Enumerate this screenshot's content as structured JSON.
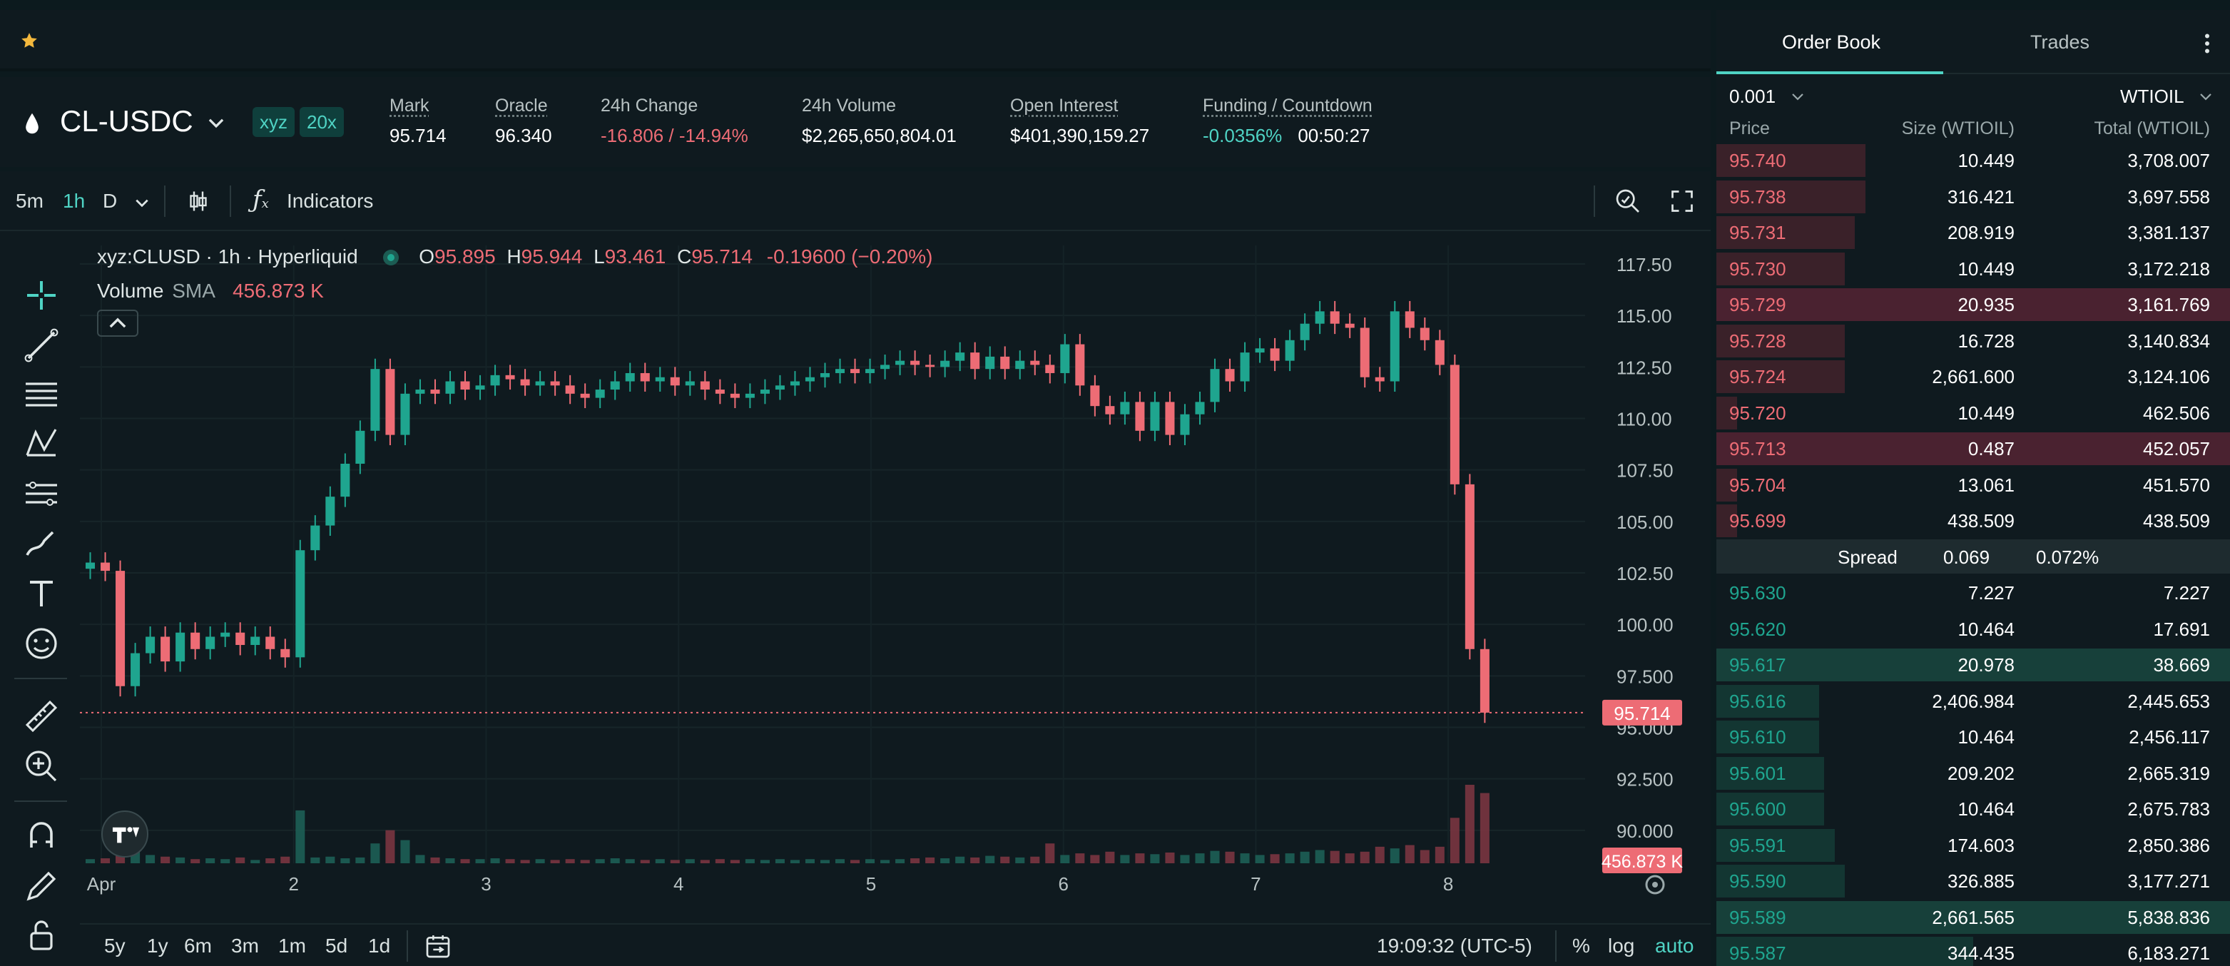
{
  "market": {
    "symbol": "CL-USDC",
    "tags": [
      "xyz",
      "20x"
    ],
    "stats": [
      {
        "label": "Mark",
        "value": "95.714",
        "tone": "white"
      },
      {
        "label": "Oracle",
        "value": "96.340",
        "tone": "white"
      },
      {
        "label": "24h Change",
        "value": "-16.806 / -14.94%",
        "tone": "red"
      },
      {
        "label": "24h Volume",
        "value": "$2,265,650,804.01",
        "tone": "white"
      },
      {
        "label": "Open Interest",
        "value": "$401,390,159.27",
        "tone": "white"
      },
      {
        "label": "Funding / Countdown",
        "value": "-0.0356%",
        "value2": "00:50:27",
        "tone": "teal"
      }
    ]
  },
  "toolbar": {
    "timeframes": [
      "5m",
      "1h",
      "D"
    ],
    "active_timeframe": "1h",
    "indicators_label": "Indicators"
  },
  "legend": {
    "title": "xyz:CLUSD · 1h · Hyperliquid",
    "o_label": "O",
    "o": "95.895",
    "h_label": "H",
    "h": "95.944",
    "l_label": "L",
    "l": "93.461",
    "c_label": "C",
    "c": "95.714",
    "change": "-0.19600 (−0.20%)",
    "volume_label": "Volume",
    "sma_label": "SMA",
    "sma_value": "456.873 K"
  },
  "chart_data": {
    "type": "candlestick",
    "y_ticks": [
      "117.50",
      "115.00",
      "112.50",
      "110.00",
      "107.50",
      "105.00",
      "102.50",
      "100.00",
      "97.500",
      "95.000",
      "92.500",
      "90.000"
    ],
    "ylim": [
      88.4,
      118.4
    ],
    "x_ticks": [
      "Apr",
      "2",
      "3",
      "4",
      "5",
      "6",
      "7",
      "8"
    ],
    "last_price_label": "95.714",
    "last_price": 95.714,
    "volume_label": "456.873 K",
    "closes": [
      103,
      102.6,
      97,
      98.6,
      99.4,
      98.2,
      99.6,
      98.8,
      99.4,
      99.6,
      99,
      99.4,
      98.8,
      98.4,
      103.6,
      104.8,
      106.2,
      107.8,
      109.4,
      112.4,
      109.2,
      111.2,
      111.4,
      111.2,
      111.8,
      111.4,
      111.6,
      112.1,
      111.9,
      111.6,
      111.8,
      111.6,
      111.2,
      111.0,
      111.4,
      111.8,
      112.2,
      111.8,
      112.0,
      111.6,
      111.8,
      111.4,
      111.2,
      111.0,
      111.2,
      111.4,
      111.6,
      111.8,
      112.0,
      112.2,
      112.4,
      112.2,
      112.4,
      112.6,
      112.8,
      112.6,
      112.5,
      112.8,
      113.2,
      112.4,
      113.0,
      112.4,
      112.8,
      112.6,
      112.2,
      113.6,
      111.6,
      110.6,
      110.2,
      110.8,
      109.4,
      110.8,
      109.2,
      110.2,
      110.8,
      112.4,
      111.8,
      113.2,
      113.4,
      112.8,
      113.8,
      114.6,
      115.2,
      114.6,
      114.4,
      112.0,
      111.8,
      115.2,
      114.4,
      113.8,
      112.6,
      106.8,
      98.8,
      95.714
    ],
    "volumes": [
      0.05,
      0.06,
      0.12,
      0.15,
      0.1,
      0.08,
      0.07,
      0.05,
      0.06,
      0.05,
      0.07,
      0.04,
      0.06,
      0.08,
      0.64,
      0.07,
      0.08,
      0.06,
      0.07,
      0.24,
      0.4,
      0.28,
      0.1,
      0.07,
      0.06,
      0.05,
      0.05,
      0.06,
      0.05,
      0.04,
      0.05,
      0.04,
      0.05,
      0.04,
      0.05,
      0.06,
      0.05,
      0.04,
      0.05,
      0.04,
      0.05,
      0.04,
      0.05,
      0.04,
      0.05,
      0.04,
      0.05,
      0.04,
      0.05,
      0.04,
      0.05,
      0.04,
      0.05,
      0.04,
      0.05,
      0.06,
      0.07,
      0.06,
      0.08,
      0.07,
      0.09,
      0.08,
      0.07,
      0.08,
      0.24,
      0.1,
      0.12,
      0.1,
      0.14,
      0.1,
      0.12,
      0.11,
      0.13,
      0.1,
      0.12,
      0.15,
      0.14,
      0.12,
      0.1,
      0.11,
      0.12,
      0.14,
      0.16,
      0.15,
      0.12,
      0.14,
      0.2,
      0.18,
      0.22,
      0.16,
      0.2,
      0.55,
      0.95,
      0.85
    ]
  },
  "bottombar": {
    "ranges": [
      "5y",
      "1y",
      "6m",
      "3m",
      "1m",
      "5d",
      "1d"
    ],
    "clock": "19:09:32 (UTC-5)",
    "pct_label": "%",
    "log_label": "log",
    "auto_label": "auto"
  },
  "orderbook": {
    "tabs": [
      "Order Book",
      "Trades"
    ],
    "active_tab": "Order Book",
    "tick_size": "0.001",
    "unit_selector": "WTIOIL",
    "headers": {
      "price": "Price",
      "size": "Size (WTIOIL)",
      "total": "Total (WTIOIL)"
    },
    "asks": [
      {
        "price": "95.740",
        "size": "10.449",
        "total": "3,708.007",
        "depth": 0.29,
        "highlight": false
      },
      {
        "price": "95.738",
        "size": "316.421",
        "total": "3,697.558",
        "depth": 0.29,
        "highlight": false
      },
      {
        "price": "95.731",
        "size": "208.919",
        "total": "3,381.137",
        "depth": 0.27,
        "highlight": false
      },
      {
        "price": "95.730",
        "size": "10.449",
        "total": "3,172.218",
        "depth": 0.25,
        "highlight": false
      },
      {
        "price": "95.729",
        "size": "20.935",
        "total": "3,161.769",
        "depth": 1.0,
        "highlight": true
      },
      {
        "price": "95.728",
        "size": "16.728",
        "total": "3,140.834",
        "depth": 0.25,
        "highlight": false
      },
      {
        "price": "95.724",
        "size": "2,661.600",
        "total": "3,124.106",
        "depth": 0.25,
        "highlight": false
      },
      {
        "price": "95.720",
        "size": "10.449",
        "total": "462.506",
        "depth": 0.04,
        "highlight": false
      },
      {
        "price": "95.713",
        "size": "0.487",
        "total": "452.057",
        "depth": 1.0,
        "highlight": true
      },
      {
        "price": "95.704",
        "size": "13.061",
        "total": "451.570",
        "depth": 0.04,
        "highlight": false
      },
      {
        "price": "95.699",
        "size": "438.509",
        "total": "438.509",
        "depth": 0.04,
        "highlight": false
      }
    ],
    "spread": {
      "label": "Spread",
      "value": "0.069",
      "pct": "0.072%"
    },
    "bids": [
      {
        "price": "95.630",
        "size": "7.227",
        "total": "7.227",
        "depth": 0.0,
        "highlight": false
      },
      {
        "price": "95.620",
        "size": "10.464",
        "total": "17.691",
        "depth": 0.0,
        "highlight": false
      },
      {
        "price": "95.617",
        "size": "20.978",
        "total": "38.669",
        "depth": 1.0,
        "highlight": true
      },
      {
        "price": "95.616",
        "size": "2,406.984",
        "total": "2,445.653",
        "depth": 0.2,
        "highlight": false
      },
      {
        "price": "95.610",
        "size": "10.464",
        "total": "2,456.117",
        "depth": 0.2,
        "highlight": false
      },
      {
        "price": "95.601",
        "size": "209.202",
        "total": "2,665.319",
        "depth": 0.21,
        "highlight": false
      },
      {
        "price": "95.600",
        "size": "10.464",
        "total": "2,675.783",
        "depth": 0.21,
        "highlight": false
      },
      {
        "price": "95.591",
        "size": "174.603",
        "total": "2,850.386",
        "depth": 0.23,
        "highlight": false
      },
      {
        "price": "95.590",
        "size": "326.885",
        "total": "3,177.271",
        "depth": 0.25,
        "highlight": false
      },
      {
        "price": "95.589",
        "size": "2,661.565",
        "total": "5,838.836",
        "depth": 1.0,
        "highlight": true
      },
      {
        "price": "95.587",
        "size": "344.435",
        "total": "6,183.271",
        "depth": 0.5,
        "highlight": false
      }
    ]
  },
  "colors": {
    "up": "#1fa58f",
    "down": "#ed6c75",
    "accent": "#4fd3c4",
    "star": "#f3b83d"
  },
  "icons": [
    "star-icon",
    "droplet-icon",
    "chevron-down-icon",
    "candle-style-icon",
    "indicators-icon",
    "zoom-search-icon",
    "fullscreen-icon",
    "crosshair-icon",
    "trend-line-icon",
    "horizontal-lines-icon",
    "pattern-icon",
    "projection-icon",
    "brush-icon",
    "text-icon",
    "emoji-icon",
    "ruler-icon",
    "zoom-in-icon",
    "magnet-icon",
    "lock-edit-icon",
    "lock-icon",
    "calendar-range-icon",
    "settings-gear-icon",
    "kebab-menu-icon",
    "tradingview-logo-icon"
  ]
}
